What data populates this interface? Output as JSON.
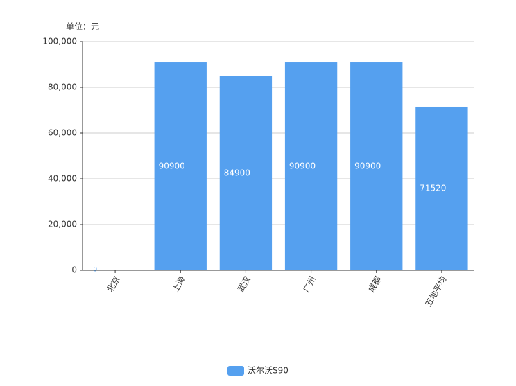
{
  "chart_data": {
    "type": "bar",
    "unit_label": "单位：元",
    "categories": [
      "北京",
      "上海",
      "武汉",
      "广州",
      "成都",
      "五地平均"
    ],
    "series": [
      {
        "name": "沃尔沃S90",
        "color": "#55a0ef",
        "values": [
          0,
          90900,
          84900,
          90900,
          90900,
          71520
        ]
      }
    ],
    "ylim": [
      0,
      100000
    ],
    "yticks": [
      0,
      {
        "value": 20000,
        "label": "20,000"
      },
      {
        "value": 40000,
        "label": "40,000"
      },
      {
        "value": 60000,
        "label": "60,000"
      },
      {
        "value": 80000,
        "label": "80,000"
      },
      {
        "value": 100000,
        "label": "100,000"
      }
    ],
    "grid": true,
    "legend": "bottom"
  }
}
